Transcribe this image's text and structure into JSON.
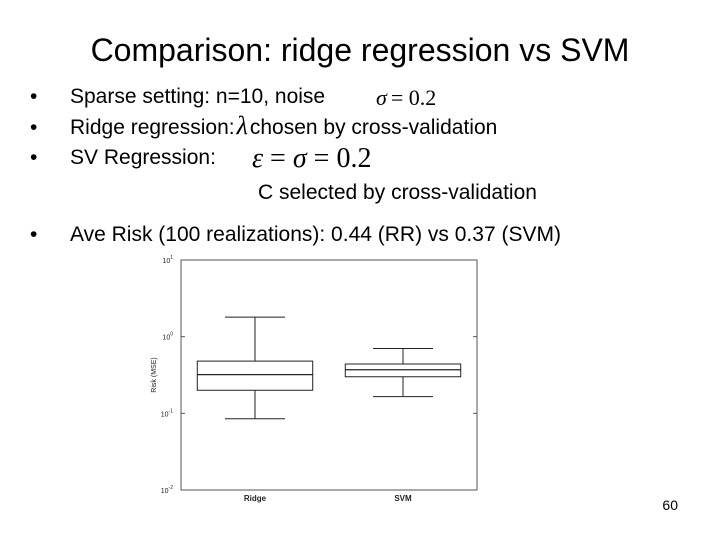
{
  "slide": {
    "title": "Comparison: ridge regression vs SVM",
    "bullets": [
      {
        "text": "Sparse setting: n=10, noise"
      },
      {
        "text": "Ridge regression:",
        "text2": "chosen by cross-validation"
      },
      {
        "text": "SV Regression:"
      },
      {
        "text": "Ave Risk (100 realizations): 0.44 (RR) vs 0.37 (SVM)"
      }
    ],
    "c_line": "C selected by cross-validation",
    "math": {
      "noise": {
        "sym": "σ",
        "eq": "= 0.2"
      },
      "lambda": "λ",
      "svr": {
        "eps": "ε",
        "eq1": " = ",
        "sig": "σ",
        "eq2": " = 0.2"
      }
    },
    "page_number": "60",
    "bullet_glyph": "•"
  },
  "chart_data": {
    "type": "box",
    "scale": "log",
    "ylabel": "Risk (MSE)",
    "ylim": [
      0.01,
      10
    ],
    "y_ticks": [
      {
        "base": "10",
        "exp": "-2",
        "value": 0.01
      },
      {
        "base": "10",
        "exp": "-1",
        "value": 0.1
      },
      {
        "base": "10",
        "exp": "0",
        "value": 1
      },
      {
        "base": "10",
        "exp": "1",
        "value": 10
      }
    ],
    "categories": [
      "Ridge",
      "SVM"
    ],
    "boxes": [
      {
        "category": "Ridge",
        "whisker_low": 0.085,
        "q1": 0.2,
        "median": 0.32,
        "q3": 0.48,
        "whisker_high": 1.8
      },
      {
        "category": "SVM",
        "whisker_low": 0.165,
        "q1": 0.3,
        "median": 0.37,
        "q3": 0.44,
        "whisker_high": 0.7
      }
    ],
    "grid": false
  }
}
